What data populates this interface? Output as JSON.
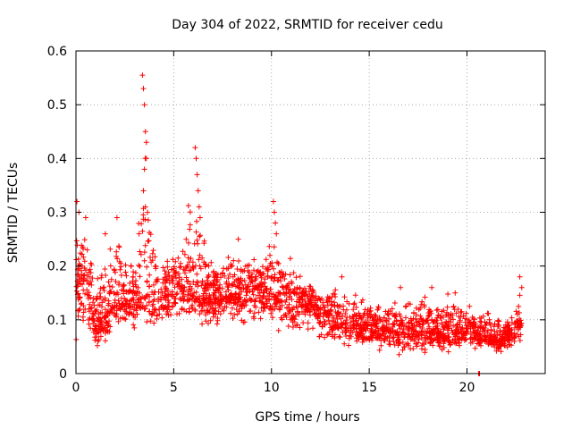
{
  "chart_data": {
    "type": "scatter",
    "title": "Day 304 of 2022, SRMTID for receiver cedu",
    "xlabel": "GPS time / hours",
    "ylabel": "SRMTID / TECUs",
    "xlim": [
      0,
      24
    ],
    "ylim": [
      0,
      0.6
    ],
    "x_ticks": [
      0,
      5,
      10,
      15,
      20
    ],
    "y_ticks": [
      0,
      0.1,
      0.2,
      0.3,
      0.4,
      0.5,
      0.6
    ],
    "x_tick_labels": [
      "0",
      "5",
      "10",
      "15",
      "20"
    ],
    "y_tick_labels": [
      "0",
      "0.1",
      "0.2",
      "0.3",
      "0.4",
      "0.5",
      "0.6"
    ],
    "grid": true,
    "marker": "+",
    "series_color": "#ff0000",
    "envelope": {
      "note": "Approximate per-hour envelope of the SRMTID scatter (hour, lower, typical, upper) read from the plot",
      "hour": [
        0,
        0.5,
        1,
        1.5,
        2,
        2.5,
        3,
        3.5,
        4,
        4.5,
        5,
        5.5,
        6,
        6.5,
        7,
        7.5,
        8,
        8.5,
        9,
        9.5,
        10,
        10.5,
        11,
        11.5,
        12,
        12.5,
        13,
        13.5,
        14,
        14.5,
        15,
        15.5,
        16,
        16.5,
        17,
        17.5,
        18,
        18.5,
        19,
        19.5,
        20,
        20.5,
        21,
        21.5,
        22,
        22.5,
        22.8
      ],
      "lower": [
        0.05,
        0.06,
        0.03,
        0.05,
        0.07,
        0.08,
        0.07,
        0.06,
        0.07,
        0.08,
        0.09,
        0.1,
        0.09,
        0.08,
        0.07,
        0.08,
        0.09,
        0.08,
        0.09,
        0.08,
        0.07,
        0.06,
        0.06,
        0.07,
        0.07,
        0.06,
        0.05,
        0.05,
        0.04,
        0.04,
        0.04,
        0.04,
        0.04,
        0.03,
        0.03,
        0.03,
        0.03,
        0.03,
        0.02,
        0.04,
        0.04,
        0.04,
        0.04,
        0.03,
        0.03,
        0.04,
        0.06
      ],
      "typical": [
        0.17,
        0.17,
        0.09,
        0.11,
        0.14,
        0.13,
        0.13,
        0.15,
        0.14,
        0.14,
        0.16,
        0.16,
        0.16,
        0.15,
        0.14,
        0.15,
        0.15,
        0.15,
        0.16,
        0.15,
        0.15,
        0.14,
        0.13,
        0.14,
        0.14,
        0.11,
        0.1,
        0.1,
        0.09,
        0.09,
        0.08,
        0.08,
        0.09,
        0.08,
        0.08,
        0.08,
        0.08,
        0.08,
        0.07,
        0.08,
        0.08,
        0.07,
        0.07,
        0.06,
        0.07,
        0.08,
        0.1
      ],
      "upper": [
        0.32,
        0.29,
        0.21,
        0.26,
        0.29,
        0.25,
        0.22,
        0.55,
        0.24,
        0.24,
        0.24,
        0.25,
        0.42,
        0.26,
        0.22,
        0.23,
        0.25,
        0.24,
        0.24,
        0.22,
        0.32,
        0.24,
        0.22,
        0.2,
        0.19,
        0.15,
        0.18,
        0.16,
        0.16,
        0.16,
        0.14,
        0.15,
        0.14,
        0.14,
        0.15,
        0.15,
        0.15,
        0.15,
        0.17,
        0.15,
        0.14,
        0.12,
        0.12,
        0.12,
        0.11,
        0.12,
        0.18
      ]
    },
    "spikes": [
      {
        "x": 0.05,
        "y": 0.32
      },
      {
        "x": 0.15,
        "y": 0.3
      },
      {
        "x": 0.5,
        "y": 0.29
      },
      {
        "x": 3.4,
        "y": 0.555
      },
      {
        "x": 3.45,
        "y": 0.53
      },
      {
        "x": 3.5,
        "y": 0.5
      },
      {
        "x": 3.55,
        "y": 0.45
      },
      {
        "x": 3.6,
        "y": 0.4
      },
      {
        "x": 3.5,
        "y": 0.38
      },
      {
        "x": 3.6,
        "y": 0.43
      },
      {
        "x": 3.45,
        "y": 0.34
      },
      {
        "x": 3.55,
        "y": 0.31
      },
      {
        "x": 6.1,
        "y": 0.42
      },
      {
        "x": 6.15,
        "y": 0.4
      },
      {
        "x": 6.2,
        "y": 0.37
      },
      {
        "x": 6.25,
        "y": 0.34
      },
      {
        "x": 6.3,
        "y": 0.31
      },
      {
        "x": 6.35,
        "y": 0.29
      },
      {
        "x": 10.1,
        "y": 0.32
      },
      {
        "x": 10.15,
        "y": 0.3
      },
      {
        "x": 10.2,
        "y": 0.28
      },
      {
        "x": 10.25,
        "y": 0.26
      },
      {
        "x": 2.1,
        "y": 0.29
      },
      {
        "x": 1.5,
        "y": 0.26
      },
      {
        "x": 8.3,
        "y": 0.25
      },
      {
        "x": 13.6,
        "y": 0.18
      },
      {
        "x": 22.7,
        "y": 0.18
      },
      {
        "x": 22.8,
        "y": 0.16
      },
      {
        "x": 18.2,
        "y": 0.16
      },
      {
        "x": 16.6,
        "y": 0.16
      }
    ],
    "outliers": [
      {
        "x": 20.6,
        "y": 0.0
      },
      {
        "x": 20.62,
        "y": 0.0
      },
      {
        "x": 20.64,
        "y": 0.0
      }
    ]
  }
}
